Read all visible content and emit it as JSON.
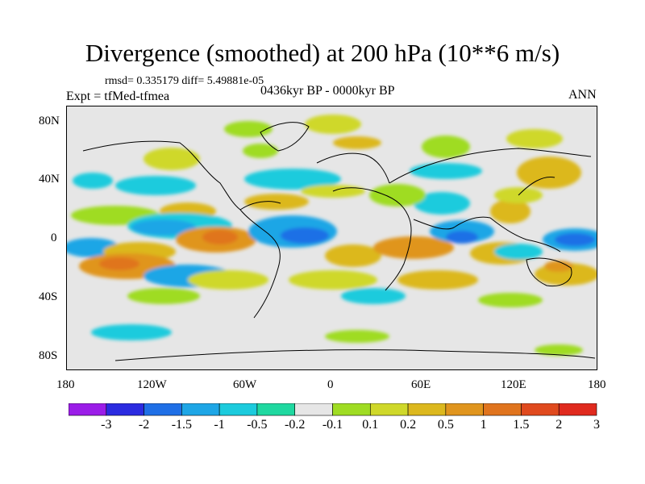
{
  "title": "Divergence (smoothed) at 200 hPa (10**6 m/s)",
  "stats_line": "rmsd= 0.335179 diff= 5.49881e-05",
  "experiment_line": "Expt = tfMed-tfmea",
  "period_line": "0436kyr BP - 0000kyr BP",
  "season": "ANN",
  "lat_labels": [
    "80N",
    "40N",
    "0",
    "40S",
    "80S"
  ],
  "lon_labels": [
    "180",
    "120W",
    "60W",
    "0",
    "60E",
    "120E",
    "180"
  ],
  "colorbar": {
    "colors": [
      "#9b1de8",
      "#2b2be0",
      "#1f6fe6",
      "#1ea6e6",
      "#1ccbdd",
      "#1fd8a0",
      "#e6e6e6",
      "#9fdc23",
      "#cfd82a",
      "#dcb81e",
      "#e0951e",
      "#e0741e",
      "#e04a1e",
      "#e02a1e"
    ],
    "labels": [
      "-3",
      "-2",
      "-1.5",
      "-1",
      "-0.5",
      "-0.2",
      "-0.1",
      "0.1",
      "0.2",
      "0.5",
      "1",
      "1.5",
      "2",
      "3"
    ]
  }
}
